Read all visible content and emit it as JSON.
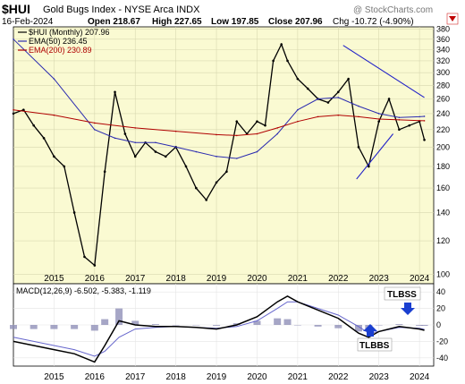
{
  "header": {
    "symbol": "$HUI",
    "name": "Gold Bugs Index - NYSE Arca  INDX",
    "watermark": "@ StockCharts.com",
    "date": "16-Feb-2024",
    "open": "Open 218.67",
    "high": "High 227.65",
    "low": "Low 197.85",
    "close": "Close 207.96",
    "chg": "Chg -10.72 (-4.90%)"
  },
  "legend": [
    {
      "label": "$HUI (Monthly) 207.96",
      "color": "#000000"
    },
    {
      "label": "EMA(50) 236.45",
      "color": "#2b2bb0"
    },
    {
      "label": "EMA(200) 230.89",
      "color": "#b00000"
    }
  ],
  "macd_legend": {
    "label": "MACD(12,26,9) -6.502, -5.383, -1.119"
  },
  "annotations": {
    "tlbss": "TLBSS",
    "tlbbs": "TLBBS"
  },
  "colors": {
    "panel_bg": "#fafad2",
    "grid": "#d8d8b0",
    "price": "#000000",
    "ema50": "#2b2bb0",
    "ema200": "#b00000",
    "trend": "#2020c8",
    "arrow": "#1a3fd0",
    "hist": "#9090b8"
  },
  "chart_data": {
    "type": "line",
    "x_ticks": [
      "2015",
      "2016",
      "2017",
      "2018",
      "2019",
      "2020",
      "2021",
      "2022",
      "2023",
      "2024"
    ],
    "price_axis": {
      "scale": "log",
      "ticks": [
        100,
        120,
        140,
        160,
        180,
        200,
        220,
        240,
        260,
        280,
        300,
        320,
        340,
        360,
        380
      ],
      "ylim": [
        95,
        385
      ]
    },
    "macd_axis": {
      "ticks": [
        40,
        20,
        0,
        -20,
        -40
      ],
      "ylim": [
        -50,
        50
      ]
    },
    "series": [
      {
        "name": "$HUI (Monthly) 207.96",
        "x": [
          2014.0,
          2014.25,
          2014.5,
          2014.75,
          2015.0,
          2015.25,
          2015.5,
          2015.75,
          2016.0,
          2016.25,
          2016.5,
          2016.75,
          2017.0,
          2017.25,
          2017.5,
          2017.75,
          2018.0,
          2018.25,
          2018.5,
          2018.75,
          2019.0,
          2019.25,
          2019.5,
          2019.75,
          2020.0,
          2020.2,
          2020.4,
          2020.6,
          2020.75,
          2021.0,
          2021.25,
          2021.5,
          2021.75,
          2022.0,
          2022.25,
          2022.5,
          2022.75,
          2023.0,
          2023.25,
          2023.5,
          2023.75,
          2024.0,
          2024.12
        ],
        "values": [
          240,
          245,
          225,
          210,
          190,
          180,
          140,
          110,
          105,
          175,
          270,
          215,
          190,
          205,
          195,
          190,
          200,
          180,
          160,
          150,
          165,
          175,
          230,
          215,
          230,
          225,
          320,
          350,
          320,
          290,
          275,
          260,
          255,
          270,
          290,
          200,
          180,
          230,
          260,
          220,
          225,
          230,
          208
        ]
      },
      {
        "name": "EMA(50) 236.45",
        "x": [
          2014.0,
          2015.0,
          2016.0,
          2016.5,
          2017.0,
          2017.5,
          2018.0,
          2018.5,
          2019.0,
          2019.5,
          2020.0,
          2020.5,
          2021.0,
          2021.5,
          2022.0,
          2022.5,
          2023.0,
          2023.5,
          2024.0,
          2024.12
        ],
        "values": [
          360,
          290,
          220,
          210,
          205,
          205,
          200,
          195,
          190,
          188,
          195,
          215,
          245,
          260,
          262,
          250,
          240,
          235,
          236,
          236.45
        ]
      },
      {
        "name": "EMA(200) 230.89",
        "x": [
          2014.0,
          2015.0,
          2016.0,
          2017.0,
          2018.0,
          2019.0,
          2019.5,
          2020.0,
          2020.5,
          2021.0,
          2021.5,
          2022.0,
          2022.5,
          2023.0,
          2023.5,
          2024.0,
          2024.12
        ],
        "values": [
          245,
          238,
          228,
          222,
          218,
          214,
          213,
          215,
          222,
          230,
          236,
          238,
          236,
          233,
          232,
          231,
          230.89
        ]
      }
    ],
    "trendlines": [
      {
        "from": [
          2022.12,
          348
        ],
        "to": [
          2024.12,
          262
        ]
      },
      {
        "from": [
          2022.45,
          168
        ],
        "to": [
          2023.35,
          215
        ]
      }
    ],
    "macd": {
      "x": [
        2014.0,
        2014.5,
        2015.0,
        2015.5,
        2016.0,
        2016.25,
        2016.6,
        2017.0,
        2017.5,
        2018.0,
        2018.5,
        2019.0,
        2019.5,
        2020.0,
        2020.5,
        2020.75,
        2021.0,
        2021.5,
        2022.0,
        2022.5,
        2022.75,
        2023.0,
        2023.5,
        2024.0,
        2024.12
      ],
      "macd": [
        -20,
        -25,
        -30,
        -35,
        -45,
        -25,
        5,
        0,
        -2,
        -2,
        -3,
        -5,
        0,
        10,
        28,
        35,
        28,
        18,
        8,
        -10,
        -15,
        -8,
        -2,
        -5,
        -6.502
      ],
      "signal": [
        -15,
        -20,
        -25,
        -30,
        -38,
        -32,
        -15,
        -5,
        -3,
        -2,
        -3,
        -4,
        -2,
        5,
        20,
        28,
        28,
        20,
        12,
        -2,
        -10,
        -8,
        -3,
        -4,
        -5.383
      ],
      "histogram": [
        -5,
        -5,
        -5,
        -5,
        -7,
        7,
        20,
        5,
        1,
        0,
        0,
        -1,
        2,
        5,
        8,
        7,
        0,
        -2,
        -4,
        -8,
        -5,
        0,
        1,
        -1,
        -1.119
      ]
    }
  }
}
